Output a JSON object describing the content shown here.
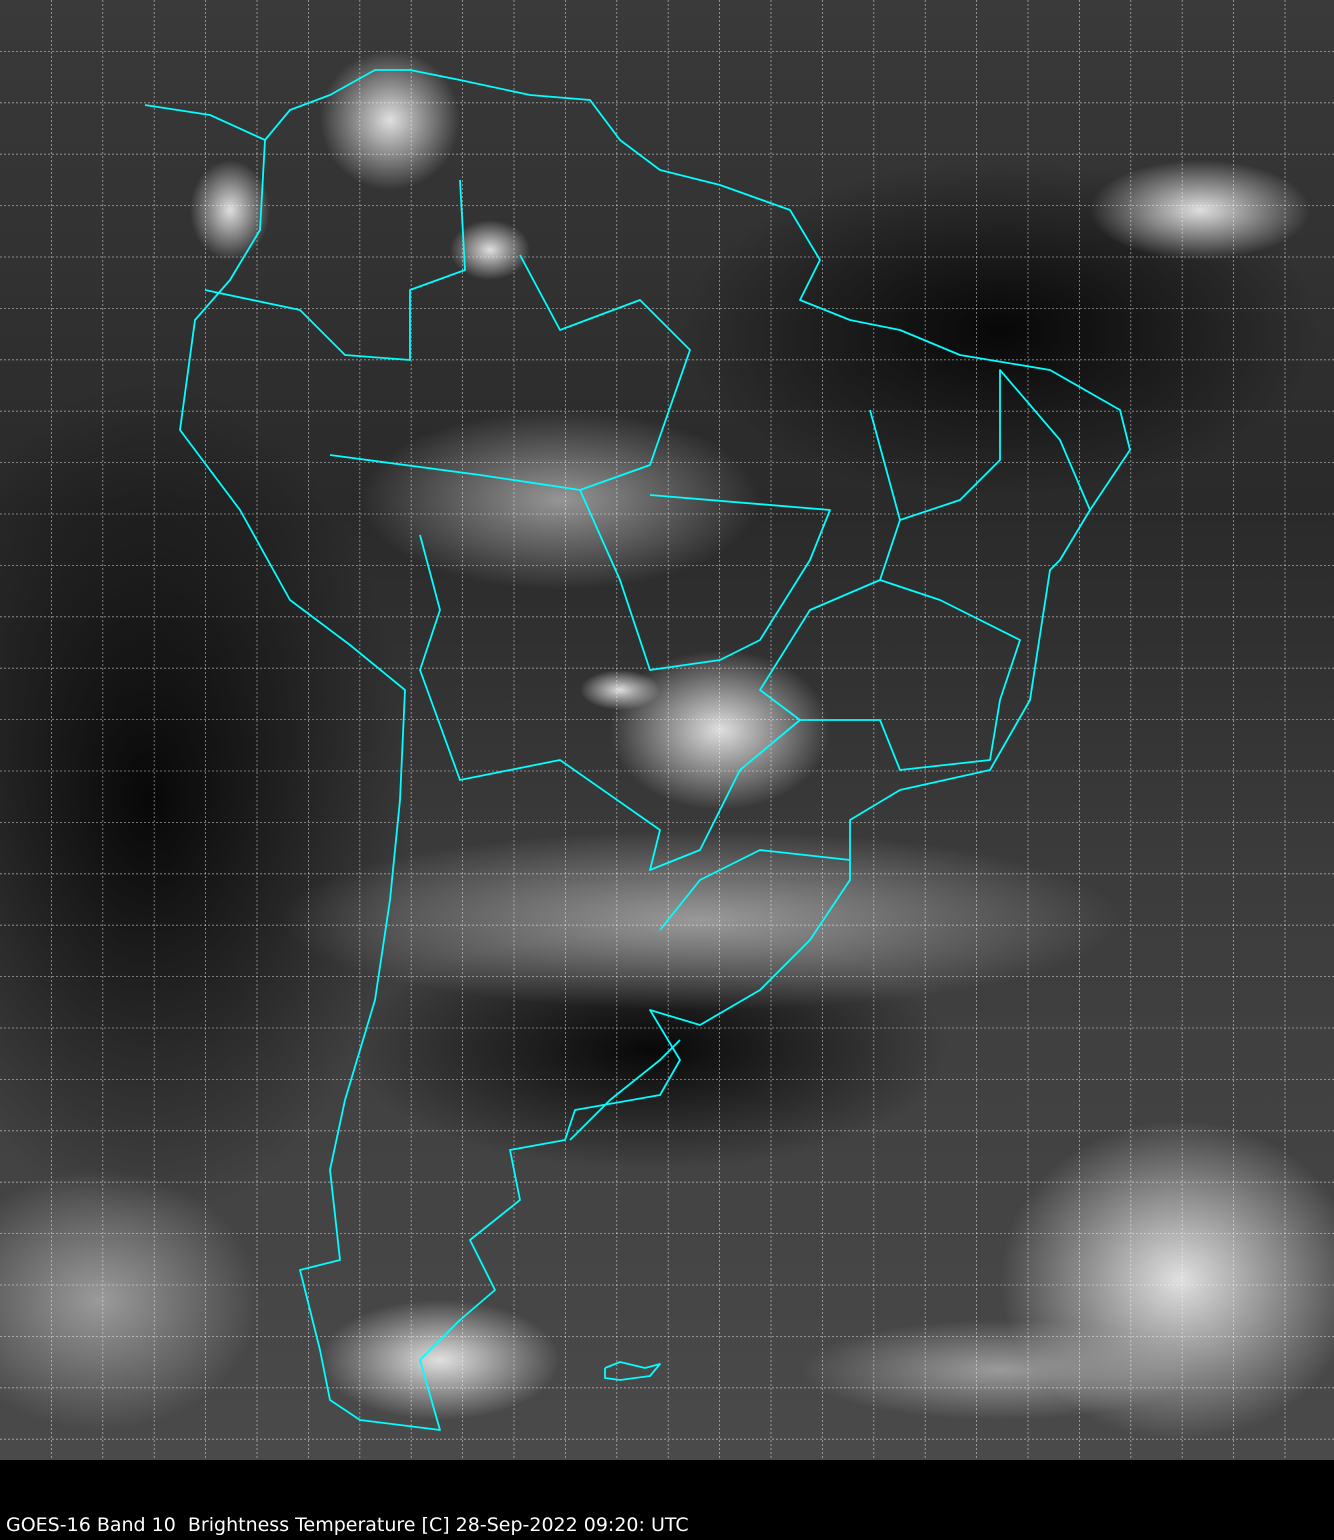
{
  "caption": "GOES-16 Band 10  Brightness Temperature [C] 28-Sep-2022 09:20: UTC",
  "colors": {
    "background": "#000000",
    "borders": "#00ffff",
    "grid": "#ffffff",
    "ocean_dark": "#101010",
    "cloud": "#e0e0e0"
  },
  "map": {
    "region": "South America",
    "imagery": "infrared grayscale",
    "graticule": true
  }
}
